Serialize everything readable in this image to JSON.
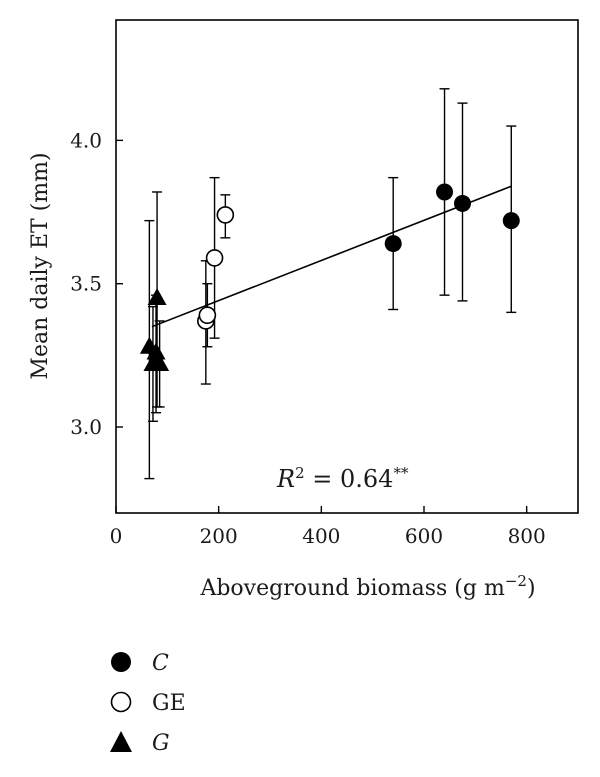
{
  "chart_data": {
    "type": "scatter",
    "xlabel": "Aboveground biomass (g m",
    "xlabel_sup": "−2",
    "xlabel_close": ")",
    "ylabel": "Mean daily ET (mm)",
    "xlim": [
      0,
      900
    ],
    "ylim": [
      2.7,
      4.42
    ],
    "xticks": [
      0,
      200,
      400,
      600,
      800
    ],
    "yticks": [
      3.0,
      3.5,
      4.0
    ],
    "xtick_labels": [
      "0",
      "200",
      "400",
      "600",
      "800"
    ],
    "ytick_labels": [
      "3.0",
      "3.5",
      "4.0"
    ],
    "annotation": {
      "r": "R",
      "r_sup": "2",
      "eq": " = 0.64",
      "sig": "**"
    },
    "regression": {
      "x": [
        70,
        770
      ],
      "y": [
        3.35,
        3.84
      ]
    },
    "legend_position": "bottom-left",
    "series": [
      {
        "name": "C",
        "marker": "filled-circle",
        "points": [
          {
            "x": 540,
            "y": 3.64,
            "lo": 3.41,
            "hi": 3.87
          },
          {
            "x": 640,
            "y": 3.82,
            "lo": 3.46,
            "hi": 4.18
          },
          {
            "x": 675,
            "y": 3.78,
            "lo": 3.44,
            "hi": 4.13
          },
          {
            "x": 770,
            "y": 3.72,
            "lo": 3.4,
            "hi": 4.05
          }
        ]
      },
      {
        "name": "GE",
        "marker": "open-circle",
        "points": [
          {
            "x": 175,
            "y": 3.37,
            "lo": 3.15,
            "hi": 3.58
          },
          {
            "x": 178,
            "y": 3.39,
            "lo": 3.28,
            "hi": 3.5
          },
          {
            "x": 192,
            "y": 3.59,
            "lo": 3.31,
            "hi": 3.87
          },
          {
            "x": 213,
            "y": 3.74,
            "lo": 3.66,
            "hi": 3.81
          }
        ]
      },
      {
        "name": "G",
        "marker": "filled-triangle",
        "points": [
          {
            "x": 65,
            "y": 3.28,
            "lo": 2.82,
            "hi": 3.72
          },
          {
            "x": 80,
            "y": 3.45,
            "lo": 3.07,
            "hi": 3.82
          },
          {
            "x": 78,
            "y": 3.26,
            "lo": 3.05,
            "hi": 3.46
          },
          {
            "x": 72,
            "y": 3.22,
            "lo": 3.02,
            "hi": 3.42
          },
          {
            "x": 85,
            "y": 3.22,
            "lo": 3.07,
            "hi": 3.37
          }
        ]
      }
    ]
  },
  "legend": {
    "items": [
      {
        "label": "C",
        "italic": true,
        "marker": "filled-circle"
      },
      {
        "label": "GE",
        "italic": false,
        "marker": "open-circle"
      },
      {
        "label": "G",
        "italic": true,
        "marker": "filled-triangle"
      }
    ]
  },
  "colors": {
    "ink": "#000000",
    "text": "#1a1a1a",
    "background": "#ffffff"
  }
}
